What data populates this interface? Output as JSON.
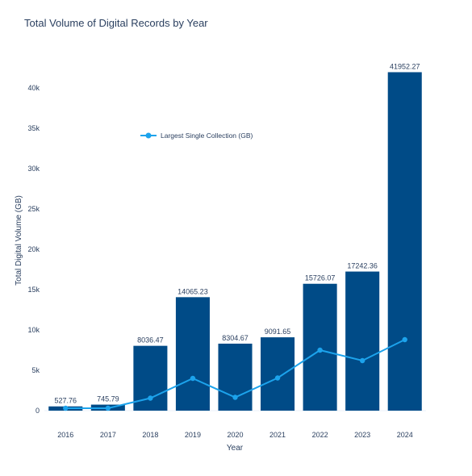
{
  "chart_data": {
    "type": "bar",
    "title": "Total Volume of Digital Records by Year",
    "xlabel": "Year",
    "ylabel": "Total Digital Volume (GB)",
    "categories": [
      "2016",
      "2017",
      "2018",
      "2019",
      "2020",
      "2021",
      "2022",
      "2023",
      "2024"
    ],
    "series": [
      {
        "type": "bar",
        "values": [
          527.76,
          745.79,
          8036.47,
          14065.23,
          8304.67,
          9091.65,
          15726.07,
          17242.36,
          41952.27
        ],
        "labels": [
          "527.76",
          "745.79",
          "8036.47",
          "14065.23",
          "8304.67",
          "9091.65",
          "15726.07",
          "17242.36",
          "41952.27"
        ],
        "color": "#004b87"
      },
      {
        "name": "Largest Single Collection (GB)",
        "type": "line",
        "values": [
          300,
          300,
          1550,
          4000,
          1650,
          4050,
          7500,
          6200,
          8800
        ],
        "color": "#1ca3ec"
      }
    ],
    "ylim": [
      0,
      43500
    ],
    "yticks": [
      0,
      5000,
      10000,
      15000,
      20000,
      25000,
      30000,
      35000,
      40000
    ],
    "ytick_labels": [
      "0",
      "5k",
      "10k",
      "15k",
      "20k",
      "25k",
      "30k",
      "35k",
      "40k"
    ],
    "grid": false,
    "legend": {
      "position": "upper-left inside plot",
      "entries": [
        "Largest Single Collection (GB)"
      ]
    }
  }
}
